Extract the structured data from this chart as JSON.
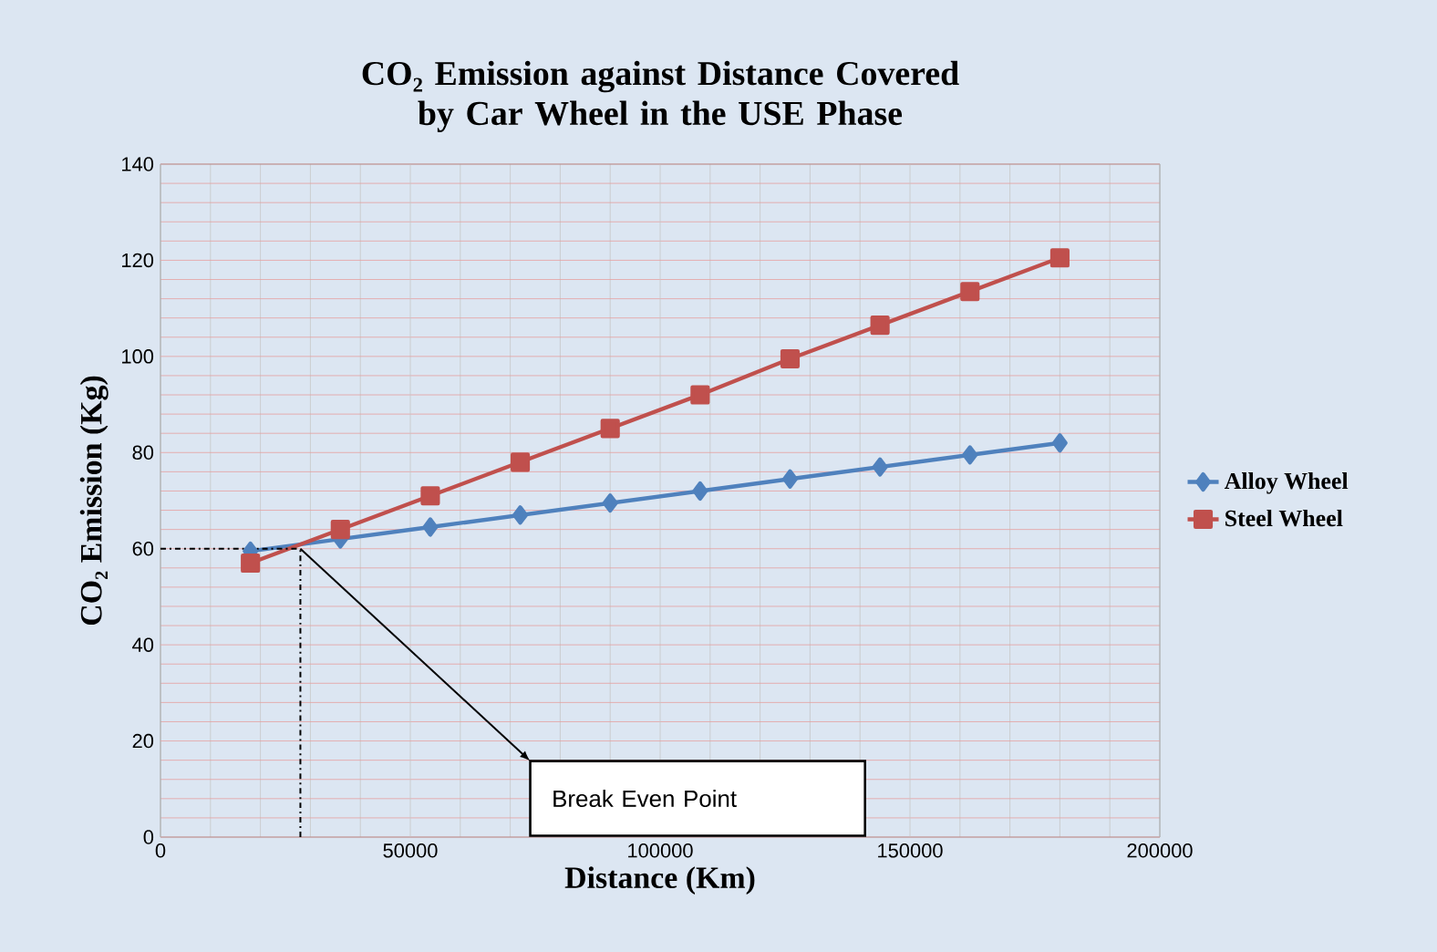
{
  "chart_data": {
    "type": "line",
    "title": "CO₂ Emission against Distance Covered by Car Wheel in the USE Phase",
    "xlabel": "Distance (Km)",
    "ylabel": "CO₂ Emission (Kg)",
    "xlim": [
      0,
      200000
    ],
    "xticks": [
      0,
      {
        "value": 10000,
        "label": null
      },
      {
        "value": 20000,
        "label": null
      },
      {
        "value": 30000,
        "label": null
      },
      {
        "value": 40000,
        "label": null
      },
      50000,
      {
        "value": 60000,
        "label": null
      },
      {
        "value": 70000,
        "label": null
      },
      {
        "value": 80000,
        "label": null
      },
      {
        "value": 90000,
        "label": null
      },
      100000,
      {
        "value": 110000,
        "label": null
      },
      {
        "value": 120000,
        "label": null
      },
      {
        "value": 130000,
        "label": null
      },
      {
        "value": 140000,
        "label": null
      },
      150000,
      {
        "value": 160000,
        "label": null
      },
      {
        "value": 170000,
        "label": null
      },
      {
        "value": 180000,
        "label": null
      },
      {
        "value": 190000,
        "label": null
      },
      200000
    ],
    "ylim": [
      0,
      140
    ],
    "yticks": [
      0,
      {
        "value": 4,
        "label": null
      },
      {
        "value": 8,
        "label": null
      },
      {
        "value": 12,
        "label": null
      },
      {
        "value": 16,
        "label": null
      },
      20,
      {
        "value": 24,
        "label": null
      },
      {
        "value": 28,
        "label": null
      },
      {
        "value": 32,
        "label": null
      },
      {
        "value": 36,
        "label": null
      },
      40,
      {
        "value": 44,
        "label": null
      },
      {
        "value": 48,
        "label": null
      },
      {
        "value": 52,
        "label": null
      },
      {
        "value": 56,
        "label": null
      },
      60,
      {
        "value": 64,
        "label": null
      },
      {
        "value": 68,
        "label": null
      },
      {
        "value": 72,
        "label": null
      },
      {
        "value": 76,
        "label": null
      },
      80,
      {
        "value": 84,
        "label": null
      },
      {
        "value": 88,
        "label": null
      },
      {
        "value": 92,
        "label": null
      },
      {
        "value": 96,
        "label": null
      },
      100,
      {
        "value": 104,
        "label": null
      },
      {
        "value": 108,
        "label": null
      },
      {
        "value": 112,
        "label": null
      },
      {
        "value": 116,
        "label": null
      },
      120,
      {
        "value": 124,
        "label": null
      },
      {
        "value": 128,
        "label": null
      },
      {
        "value": 132,
        "label": null
      },
      {
        "value": 136,
        "label": null
      },
      140
    ],
    "grid": true,
    "legend": "right",
    "ref_lines": [
      {
        "axis": "y",
        "value": 60,
        "color": "#000000",
        "line_style": "dashed"
      },
      {
        "axis": "x",
        "value": 28000,
        "color": "#000000",
        "line_style": "dashed"
      }
    ],
    "series": [
      {
        "name": "Alloy Wheel",
        "color": "#4f81bd",
        "marker": "diamond",
        "x": [
          18000,
          36000,
          54000,
          72000,
          90000,
          108000,
          126000,
          144000,
          162000,
          180000
        ],
        "values": [
          59.5,
          62,
          64.5,
          67,
          69.5,
          72,
          74.5,
          77,
          79.5,
          82
        ]
      },
      {
        "name": "Steel Wheel",
        "color": "#c0504d",
        "marker": "square",
        "x": [
          18000,
          36000,
          54000,
          72000,
          90000,
          108000,
          126000,
          144000,
          162000,
          180000
        ],
        "values": [
          57,
          64,
          71,
          78,
          85,
          92,
          99.5,
          106.5,
          113.5,
          120.5
        ]
      }
    ],
    "annotations": [
      "Break Even Point"
    ]
  }
}
